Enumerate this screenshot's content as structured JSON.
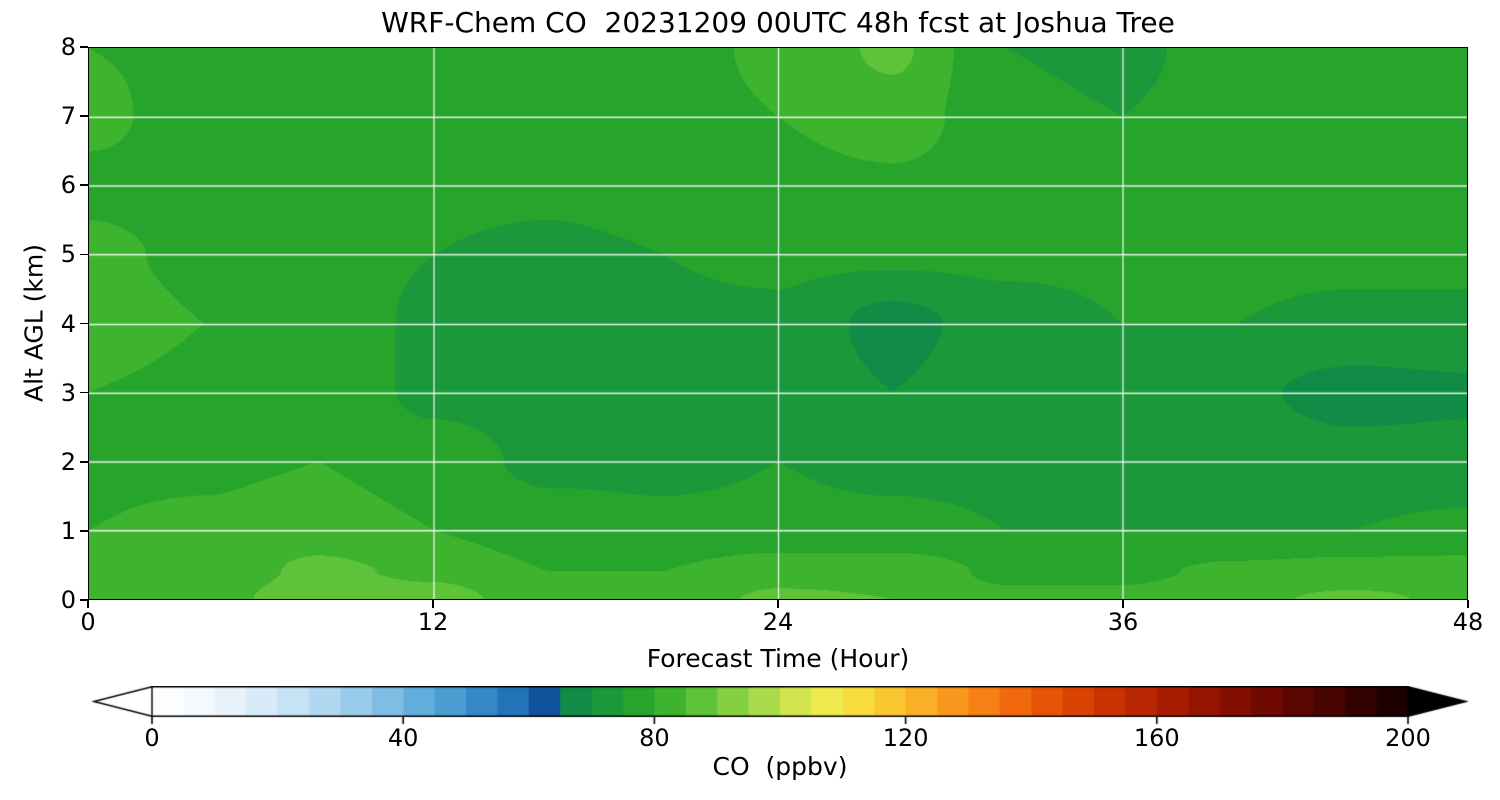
{
  "chart_data": {
    "type": "heatmap",
    "title": "WRF-Chem CO  20231209 00UTC 48h fcst at Joshua Tree",
    "xlabel": "Forecast Time (Hour)",
    "ylabel": "Alt AGL (km)",
    "xlim": [
      0,
      48
    ],
    "ylim": [
      0,
      8
    ],
    "x_ticks": [
      0,
      12,
      24,
      36,
      48
    ],
    "y_ticks": [
      0,
      1,
      2,
      3,
      4,
      5,
      6,
      7,
      8
    ],
    "grid": true,
    "grid_color": "rgba(255,255,255,0.9)",
    "times": [
      0,
      4,
      8,
      12,
      16,
      20,
      24,
      28,
      32,
      36,
      40,
      44,
      48
    ],
    "altitudes_km": [
      8,
      7,
      6,
      5,
      4,
      3,
      2,
      1,
      0.4,
      0
    ],
    "co_ppbv": [
      [
        80,
        79,
        78,
        77,
        77,
        78,
        81,
        86,
        75,
        74,
        77,
        78,
        77
      ],
      [
        81,
        78,
        77,
        77,
        76,
        78,
        80,
        83,
        76,
        75,
        77,
        77,
        77
      ],
      [
        79,
        78,
        77,
        76,
        76,
        77,
        78,
        79,
        77,
        76,
        77,
        77,
        76
      ],
      [
        81,
        79,
        77,
        75,
        74,
        75,
        76,
        76,
        76,
        76,
        76,
        76,
        76
      ],
      [
        82,
        80,
        78,
        74,
        73,
        74,
        74,
        68,
        73,
        75,
        75,
        74,
        74
      ],
      [
        80,
        79,
        78,
        74,
        73,
        74,
        74,
        70,
        74,
        74,
        71,
        68,
        69
      ],
      [
        79,
        79,
        80,
        77,
        74,
        74,
        75,
        74,
        74,
        74,
        73,
        72,
        72
      ],
      [
        80,
        81,
        83,
        80,
        77,
        76,
        76,
        76,
        75,
        75,
        75,
        75,
        76
      ],
      [
        81,
        82,
        86,
        84,
        80,
        80,
        83,
        83,
        79,
        79,
        81,
        82,
        82
      ],
      [
        82,
        83,
        88,
        87,
        82,
        82,
        86,
        85,
        81,
        81,
        84,
        86,
        84
      ]
    ],
    "colorbar": {
      "label": "CO  (ppbv)",
      "ticks": [
        0,
        40,
        80,
        120,
        160,
        200
      ],
      "range": [
        0,
        200
      ],
      "bin_start": 0,
      "bin_size": 5,
      "bin_colors": [
        "#fcfdfe",
        "#f3f9fd",
        "#e7f2fb",
        "#d8ebf8",
        "#c6e2f5",
        "#b1d8f1",
        "#99cceb",
        "#7fbde4",
        "#63addc",
        "#4a9cd2",
        "#3489c6",
        "#2274b8",
        "#10529c",
        "#108c46",
        "#1b9839",
        "#27a42c",
        "#3db32e",
        "#5ec338",
        "#85cf42",
        "#aadb4d",
        "#d2e54f",
        "#eeea4d",
        "#f8dc3e",
        "#f9c831",
        "#f9b027",
        "#f8981d",
        "#f68014",
        "#f2690d",
        "#e85407",
        "#da4204",
        "#ca3202",
        "#b92602",
        "#a81d01",
        "#961501",
        "#840f01",
        "#700a01",
        "#5c0601",
        "#470401",
        "#330200",
        "#1d0100"
      ],
      "under_color": "#ffffff",
      "over_color": "#000000"
    }
  }
}
